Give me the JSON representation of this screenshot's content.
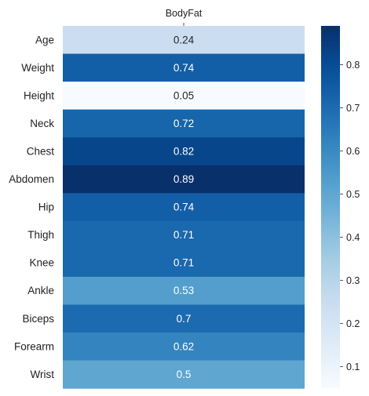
{
  "chart_data": {
    "type": "heatmap",
    "columns": [
      "BodyFat"
    ],
    "rows": [
      "Age",
      "Weight",
      "Height",
      "Neck",
      "Chest",
      "Abdomen",
      "Hip",
      "Thigh",
      "Knee",
      "Ankle",
      "Biceps",
      "Forearm",
      "Wrist"
    ],
    "values": [
      0.24,
      0.74,
      0.05,
      0.72,
      0.82,
      0.89,
      0.74,
      0.71,
      0.71,
      0.53,
      0.7,
      0.62,
      0.5
    ],
    "value_labels": [
      "0.24",
      "0.74",
      "0.05",
      "0.72",
      "0.82",
      "0.89",
      "0.74",
      "0.71",
      "0.71",
      "0.53",
      "0.7",
      "0.62",
      "0.5"
    ],
    "colorbar": {
      "colormap": "Blues",
      "vmin": 0.05,
      "vmax": 0.89,
      "ticks": [
        0.1,
        0.2,
        0.3,
        0.4,
        0.5,
        0.6,
        0.7,
        0.8
      ],
      "tick_labels": [
        "0.1",
        "0.2",
        "0.3",
        "0.4",
        "0.5",
        "0.6",
        "0.7",
        "0.8"
      ]
    },
    "grid": false,
    "column_labels_position": "top"
  }
}
